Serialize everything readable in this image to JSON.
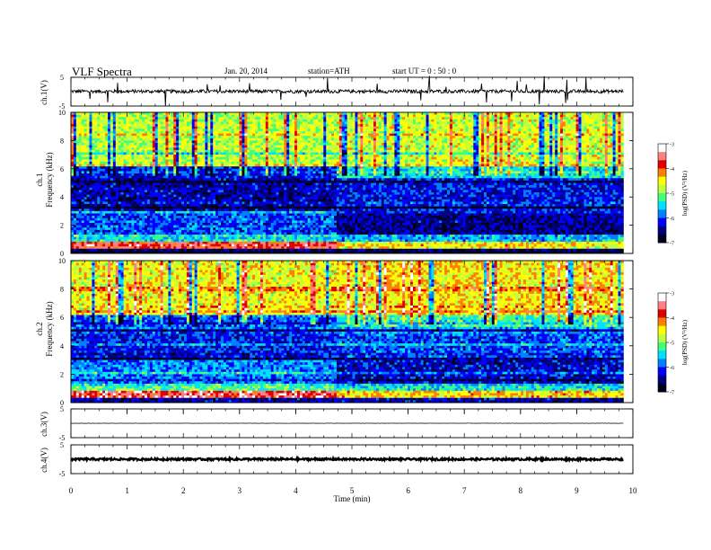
{
  "header": {
    "title": "VLF  Spectra",
    "date": "Jan. 20, 2014",
    "station": "station=ATH",
    "start": "start  UT  =   0  : 50 : 0"
  },
  "colorbar": {
    "label": "log(PSD) (V²/Hz)",
    "ticks": [
      "-3",
      "-4",
      "-5",
      "-6",
      "-7"
    ],
    "colors": [
      "#ffffff",
      "#ff8080",
      "#e00000",
      "#ff8000",
      "#ffff00",
      "#c0ff40",
      "#40ff80",
      "#00e0ff",
      "#0080ff",
      "#0000ff",
      "#000080",
      "#000020"
    ]
  },
  "chart_data": [
    {
      "type": "line",
      "ylabel": "ch.1(V)",
      "ylim": [
        -5,
        5
      ],
      "ytick_labels": [
        "5",
        "-5"
      ],
      "xlim": [
        0,
        10
      ],
      "description_values": {
        "baseline": 0.1,
        "noise_amplitude": 0.6
      }
    },
    {
      "type": "heatmap",
      "ylabel": "ch.1\nFrequency (kHz)",
      "ylabel_top": "ch.1",
      "ylabel_bottom": "Frequency (kHz)",
      "ylim": [
        0,
        10
      ],
      "ytick_labels": [
        "0",
        "2",
        "4",
        "6",
        "8",
        "10"
      ],
      "xlim": [
        0,
        10
      ],
      "data_xmax": 9.83,
      "zlim": [
        -7,
        -3
      ],
      "zlabel": "log(PSD) (V²/Hz)",
      "regime_change_min": 4.75
    },
    {
      "type": "heatmap",
      "ylabel_top": "ch.2",
      "ylabel_bottom": "Frequency (kHz)",
      "ylim": [
        0,
        10
      ],
      "ytick_labels": [
        "0",
        "2",
        "4",
        "6",
        "8",
        "10"
      ],
      "xlim": [
        0,
        10
      ],
      "data_xmax": 9.83,
      "zlim": [
        -7,
        -3
      ],
      "zlabel": "log(PSD) (V²/Hz)",
      "regime_change_min": 4.75
    },
    {
      "type": "line",
      "ylabel": "ch.3(V)",
      "ylim": [
        -5,
        5
      ],
      "ytick_labels": [
        "5",
        "-5"
      ],
      "xlim": [
        0,
        10
      ],
      "description_values": {
        "baseline": 0.0,
        "noise_amplitude": 0.05
      }
    },
    {
      "type": "line",
      "ylabel": "ch.4(V)",
      "ylim": [
        -5,
        5
      ],
      "ytick_labels": [
        "5",
        "-5"
      ],
      "xlim": [
        0,
        10
      ],
      "description_values": {
        "baseline": 0.0,
        "noise_amplitude": 0.35
      }
    }
  ],
  "xaxis": {
    "label": "Time  (min)",
    "ticks": [
      "0",
      "1",
      "2",
      "3",
      "4",
      "5",
      "6",
      "7",
      "8",
      "9",
      "10"
    ]
  }
}
